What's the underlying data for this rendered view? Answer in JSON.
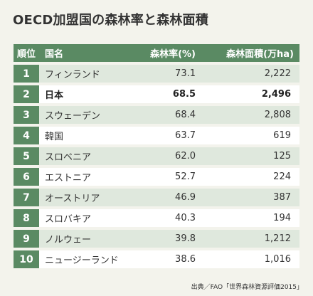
{
  "title": "OECD加盟国の森林率と森林面積",
  "source": "出典／FAO「世界森林資源評価2015」",
  "colors": {
    "accent": "#5a8a63",
    "row_tint": "#dfe8dd",
    "row_white": "#ffffff",
    "background": "#f3f3ec"
  },
  "chart_data": {
    "type": "table",
    "columns": [
      "順位",
      "国名",
      "森林率(%)",
      "森林面積(万ha)"
    ],
    "rows": [
      {
        "rank": "1",
        "country": "フィンランド",
        "rate": "73.1",
        "area": "2,222",
        "highlight": false
      },
      {
        "rank": "2",
        "country": "日本",
        "rate": "68.5",
        "area": "2,496",
        "highlight": true
      },
      {
        "rank": "3",
        "country": "スウェーデン",
        "rate": "68.4",
        "area": "2,808",
        "highlight": false
      },
      {
        "rank": "4",
        "country": "韓国",
        "rate": "63.7",
        "area": "619",
        "highlight": false
      },
      {
        "rank": "5",
        "country": "スロベニア",
        "rate": "62.0",
        "area": "125",
        "highlight": false
      },
      {
        "rank": "6",
        "country": "エストニア",
        "rate": "52.7",
        "area": "224",
        "highlight": false
      },
      {
        "rank": "7",
        "country": "オーストリア",
        "rate": "46.9",
        "area": "387",
        "highlight": false
      },
      {
        "rank": "8",
        "country": "スロバキア",
        "rate": "40.3",
        "area": "194",
        "highlight": false
      },
      {
        "rank": "9",
        "country": "ノルウェー",
        "rate": "39.8",
        "area": "1,212",
        "highlight": false
      },
      {
        "rank": "10",
        "country": "ニュージーランド",
        "rate": "38.6",
        "area": "1,016",
        "highlight": false
      }
    ]
  }
}
